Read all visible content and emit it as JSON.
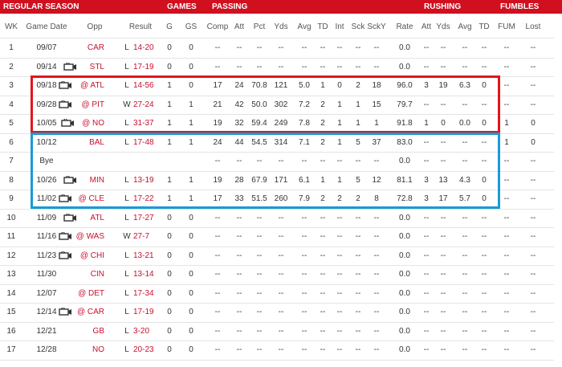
{
  "band": [
    "REGULAR SEASON",
    "GAMES",
    "PASSING",
    "RUSHING",
    "FUMBLES"
  ],
  "headers": [
    "WK",
    "Game Date",
    "Opp",
    "Result",
    "G",
    "GS",
    "Comp",
    "Att",
    "Pct",
    "Yds",
    "Avg",
    "TD",
    "Int",
    "Sck",
    "SckY",
    "Rate",
    "Att",
    "Yds",
    "Avg",
    "TD",
    "FUM",
    "Lost"
  ],
  "rows": [
    {
      "tv": false,
      "cells": [
        1,
        "09/07",
        "CAR",
        "L",
        "14-20",
        0,
        0,
        "--",
        "--",
        "--",
        "--",
        "--",
        "--",
        "--",
        "--",
        "--",
        "0.0",
        "--",
        "--",
        "--",
        "--",
        "--",
        "--"
      ]
    },
    {
      "tv": true,
      "cells": [
        2,
        "09/14",
        "STL",
        "L",
        "17-19",
        0,
        0,
        "--",
        "--",
        "--",
        "--",
        "--",
        "--",
        "--",
        "--",
        "--",
        "0.0",
        "--",
        "--",
        "--",
        "--",
        "--",
        "--"
      ]
    },
    {
      "tv": true,
      "cells": [
        3,
        "09/18",
        "@ ATL",
        "L",
        "14-56",
        1,
        0,
        17,
        24,
        70.8,
        121,
        "5.0",
        1,
        0,
        2,
        18,
        "96.0",
        3,
        19,
        6.3,
        0,
        "--",
        "--"
      ]
    },
    {
      "tv": true,
      "cells": [
        4,
        "09/28",
        "@ PIT",
        "W",
        "27-24",
        1,
        1,
        21,
        42,
        "50.0",
        302,
        7.2,
        2,
        1,
        1,
        15,
        79.7,
        "--",
        "--",
        "--",
        "--",
        "--",
        "--"
      ]
    },
    {
      "tv": true,
      "cells": [
        5,
        "10/05",
        "@ NO",
        "L",
        "31-37",
        1,
        1,
        19,
        32,
        59.4,
        249,
        7.8,
        2,
        1,
        1,
        1,
        91.8,
        1,
        0,
        "0.0",
        0,
        1,
        0
      ]
    },
    {
      "tv": false,
      "cells": [
        6,
        "10/12",
        "BAL",
        "L",
        "17-48",
        1,
        1,
        24,
        44,
        54.5,
        314,
        7.1,
        2,
        1,
        5,
        37,
        "83.0",
        "--",
        "--",
        "--",
        "--",
        1,
        0
      ]
    },
    {
      "tv": false,
      "cells": [
        7,
        "Bye",
        null,
        null,
        null,
        null,
        null,
        "--",
        "--",
        "--",
        "--",
        "--",
        "--",
        "--",
        "--",
        "--",
        "0.0",
        "--",
        "--",
        "--",
        "--",
        "--",
        "--"
      ]
    },
    {
      "tv": true,
      "cells": [
        8,
        "10/26",
        "MIN",
        "L",
        "13-19",
        1,
        1,
        19,
        28,
        67.9,
        171,
        6.1,
        1,
        1,
        5,
        12,
        81.1,
        3,
        13,
        4.3,
        0,
        "--",
        "--"
      ]
    },
    {
      "tv": true,
      "cells": [
        9,
        "11/02",
        "@ CLE",
        "L",
        "17-22",
        1,
        1,
        17,
        33,
        51.5,
        260,
        7.9,
        2,
        2,
        2,
        8,
        72.8,
        3,
        17,
        5.7,
        0,
        "--",
        "--"
      ]
    },
    {
      "tv": true,
      "cells": [
        10,
        "11/09",
        "ATL",
        "L",
        "17-27",
        0,
        0,
        "--",
        "--",
        "--",
        "--",
        "--",
        "--",
        "--",
        "--",
        "--",
        "0.0",
        "--",
        "--",
        "--",
        "--",
        "--",
        "--"
      ]
    },
    {
      "tv": true,
      "cells": [
        11,
        "11/16",
        "@ WAS",
        "W",
        "27-7",
        0,
        0,
        "--",
        "--",
        "--",
        "--",
        "--",
        "--",
        "--",
        "--",
        "--",
        "0.0",
        "--",
        "--",
        "--",
        "--",
        "--",
        "--"
      ]
    },
    {
      "tv": true,
      "cells": [
        12,
        "11/23",
        "@ CHI",
        "L",
        "13-21",
        0,
        0,
        "--",
        "--",
        "--",
        "--",
        "--",
        "--",
        "--",
        "--",
        "--",
        "0.0",
        "--",
        "--",
        "--",
        "--",
        "--",
        "--"
      ]
    },
    {
      "tv": false,
      "cells": [
        13,
        "11/30",
        "CIN",
        "L",
        "13-14",
        0,
        0,
        "--",
        "--",
        "--",
        "--",
        "--",
        "--",
        "--",
        "--",
        "--",
        "0.0",
        "--",
        "--",
        "--",
        "--",
        "--",
        "--"
      ]
    },
    {
      "tv": false,
      "cells": [
        14,
        "12/07",
        "@ DET",
        "L",
        "17-34",
        0,
        0,
        "--",
        "--",
        "--",
        "--",
        "--",
        "--",
        "--",
        "--",
        "--",
        "0.0",
        "--",
        "--",
        "--",
        "--",
        "--",
        "--"
      ]
    },
    {
      "tv": true,
      "cells": [
        15,
        "12/14",
        "@ CAR",
        "L",
        "17-19",
        0,
        0,
        "--",
        "--",
        "--",
        "--",
        "--",
        "--",
        "--",
        "--",
        "--",
        "0.0",
        "--",
        "--",
        "--",
        "--",
        "--",
        "--"
      ]
    },
    {
      "tv": false,
      "cells": [
        16,
        "12/21",
        "GB",
        "L",
        "3-20",
        0,
        0,
        "--",
        "--",
        "--",
        "--",
        "--",
        "--",
        "--",
        "--",
        "--",
        "0.0",
        "--",
        "--",
        "--",
        "--",
        "--",
        "--"
      ]
    },
    {
      "tv": false,
      "cells": [
        17,
        "12/28",
        "NO",
        "L",
        "20-23",
        0,
        0,
        "--",
        "--",
        "--",
        "--",
        "--",
        "--",
        "--",
        "--",
        "--",
        "0.0",
        "--",
        "--",
        "--",
        "--",
        "--",
        "--"
      ]
    }
  ]
}
